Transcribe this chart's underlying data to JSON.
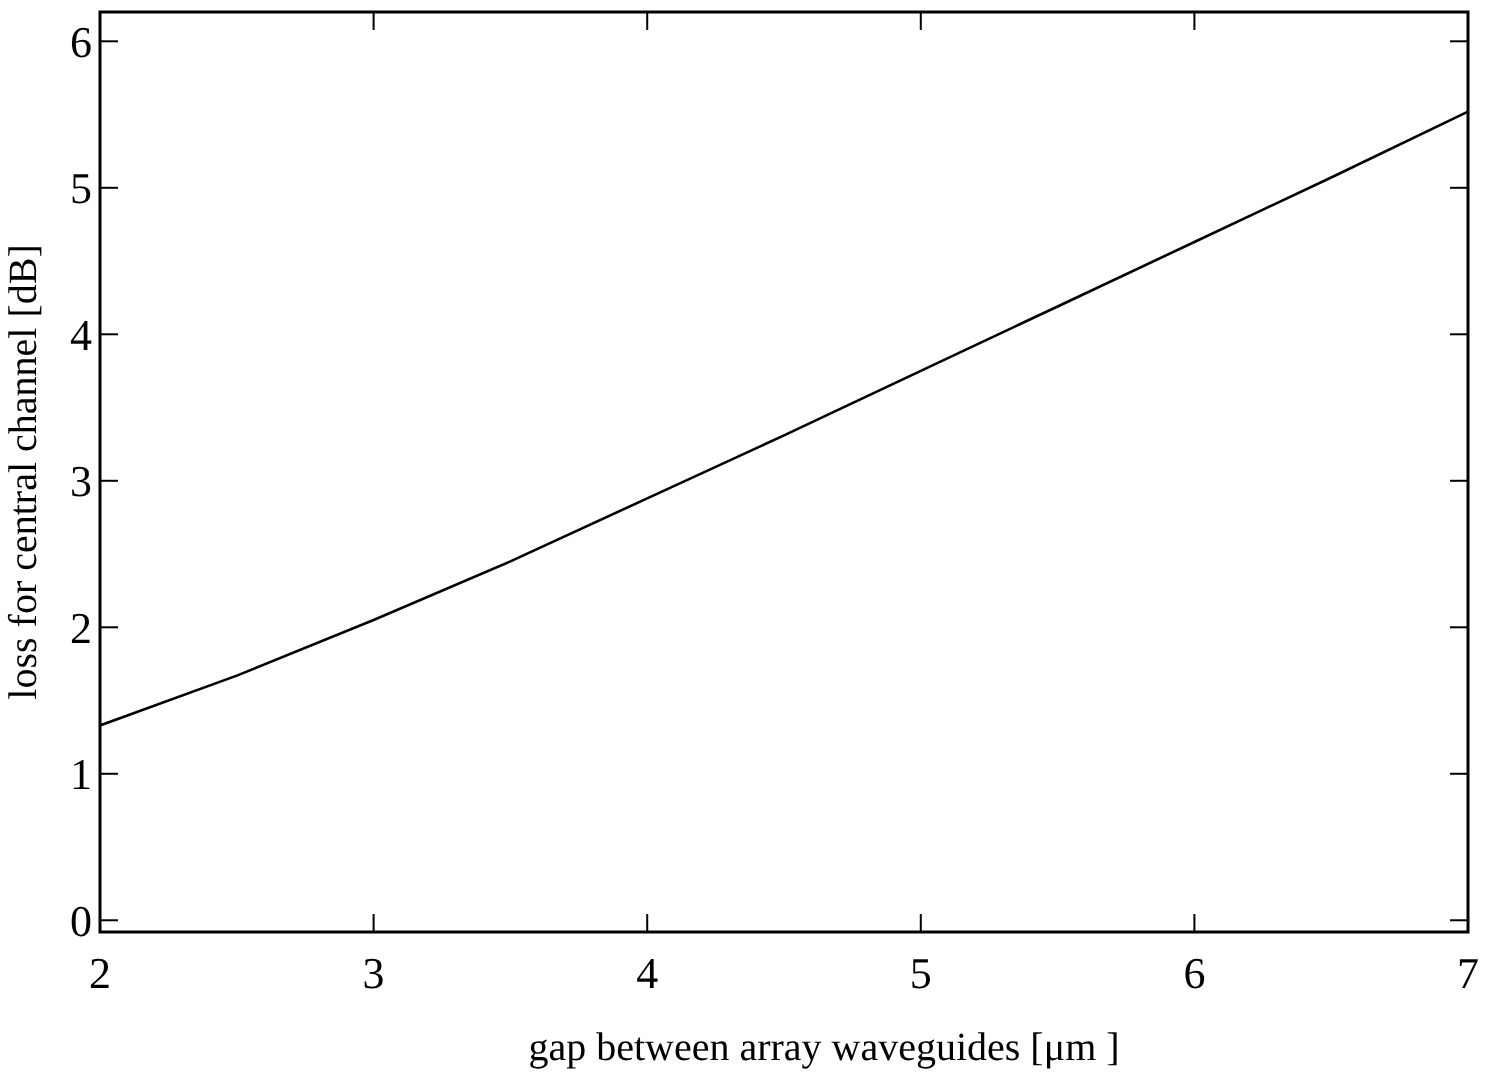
{
  "chart_data": {
    "type": "line",
    "xlabel": "gap between array waveguides [μm ]",
    "ylabel": "loss for central channel [dB]",
    "x": [
      2,
      2.5,
      3,
      3.5,
      4,
      4.5,
      5,
      5.5,
      6,
      6.5,
      7
    ],
    "series": [
      {
        "color": "#000000",
        "values": [
          1.33,
          1.67,
          2.05,
          2.45,
          2.88,
          3.31,
          3.75,
          4.19,
          4.63,
          5.07,
          5.52
        ]
      }
    ],
    "xlim": [
      2,
      7
    ],
    "xticks": [
      2,
      3,
      4,
      5,
      6,
      7
    ],
    "ylim": [
      -0.08,
      6.2
    ],
    "yticks": [
      0,
      1,
      2,
      3,
      4,
      5,
      6
    ],
    "grid": false,
    "marker": "none",
    "line_style": "solid"
  }
}
